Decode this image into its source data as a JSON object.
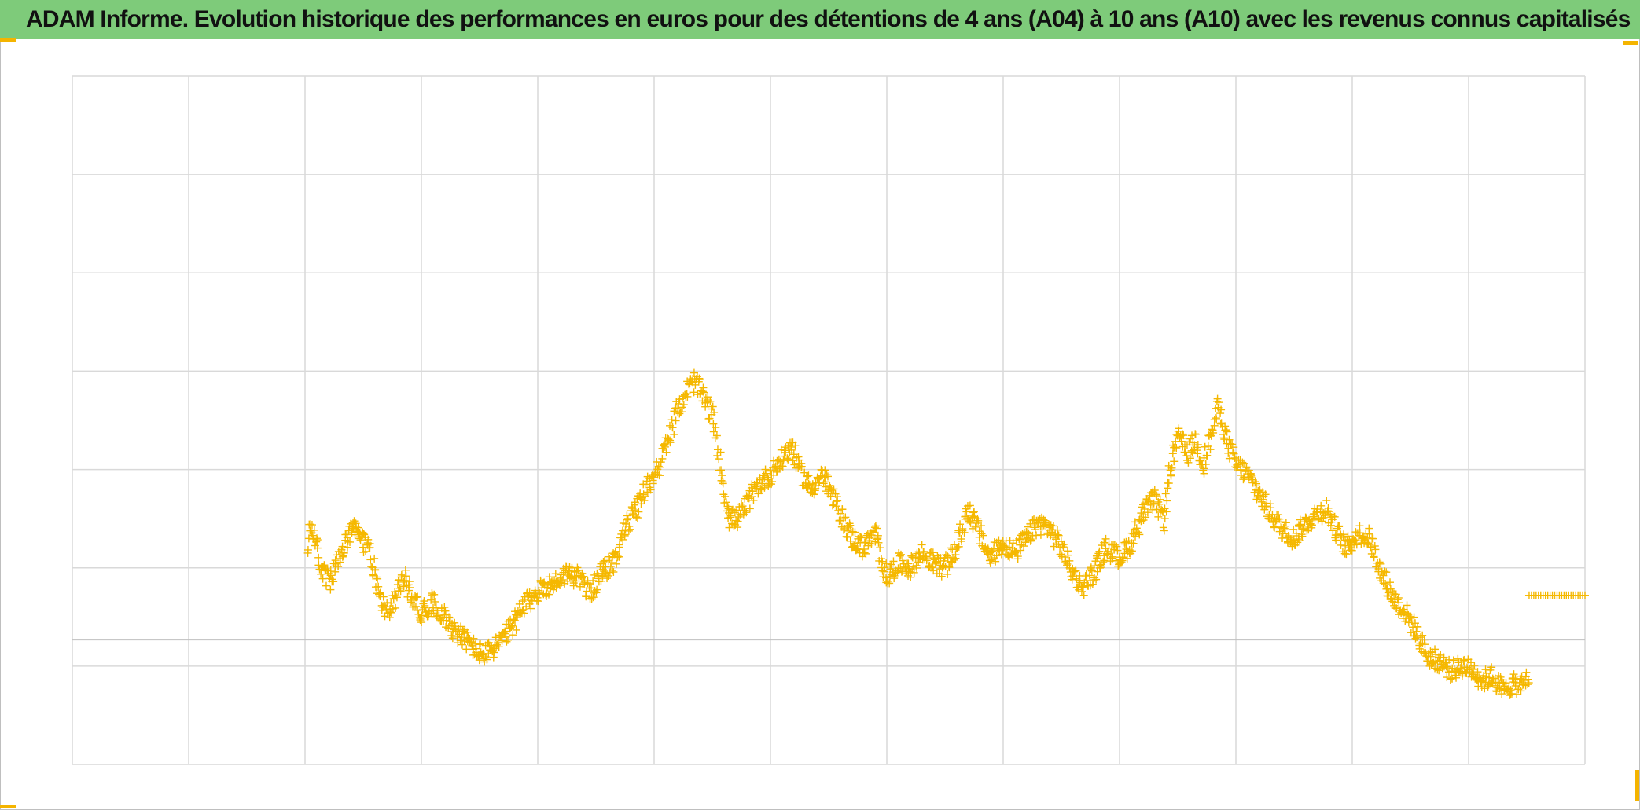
{
  "title": "ADAM Informe. Evolution historique des performances en euros pour des détentions de 4 ans (A04) à 10 ans (A10) avec les revenus connus capitalisés",
  "colors": {
    "title_bar": "#7ecb7a",
    "marker": "#f5b800",
    "grid": "#d9d9d9",
    "reference_line": "#bfbfbf",
    "handles": "#f4b400"
  },
  "chart_data": {
    "type": "scatter",
    "marker": "plus",
    "xlim": [
      0,
      13
    ],
    "ylim": [
      -1,
      6
    ],
    "x_gridlines": [
      0,
      1,
      2,
      3,
      4,
      5,
      6,
      7,
      8,
      9,
      10,
      11,
      12,
      13
    ],
    "y_gridlines": [
      -1,
      0,
      1,
      2,
      3,
      4,
      5,
      6
    ],
    "reference_line_y": 0.27,
    "tick_labels_visible": false,
    "series": [
      {
        "values_anchor_points": [
          [
            2.02,
            1.15
          ],
          [
            2.05,
            1.45
          ],
          [
            2.08,
            1.35
          ],
          [
            2.12,
            1.05
          ],
          [
            2.16,
            0.95
          ],
          [
            2.22,
            0.85
          ],
          [
            2.28,
            1.05
          ],
          [
            2.35,
            1.25
          ],
          [
            2.42,
            1.4
          ],
          [
            2.48,
            1.3
          ],
          [
            2.55,
            1.2
          ],
          [
            2.62,
            0.85
          ],
          [
            2.68,
            0.6
          ],
          [
            2.74,
            0.55
          ],
          [
            2.78,
            0.7
          ],
          [
            2.85,
            0.9
          ],
          [
            2.92,
            0.7
          ],
          [
            3.0,
            0.55
          ],
          [
            3.1,
            0.65
          ],
          [
            3.2,
            0.5
          ],
          [
            3.3,
            0.35
          ],
          [
            3.4,
            0.25
          ],
          [
            3.48,
            0.15
          ],
          [
            3.55,
            0.12
          ],
          [
            3.65,
            0.22
          ],
          [
            3.75,
            0.35
          ],
          [
            3.85,
            0.55
          ],
          [
            3.95,
            0.7
          ],
          [
            4.05,
            0.8
          ],
          [
            4.15,
            0.85
          ],
          [
            4.25,
            0.95
          ],
          [
            4.35,
            0.9
          ],
          [
            4.45,
            0.75
          ],
          [
            4.55,
            0.95
          ],
          [
            4.65,
            1.05
          ],
          [
            4.75,
            1.4
          ],
          [
            4.85,
            1.6
          ],
          [
            4.95,
            1.85
          ],
          [
            5.05,
            2.05
          ],
          [
            5.12,
            2.3
          ],
          [
            5.2,
            2.6
          ],
          [
            5.28,
            2.8
          ],
          [
            5.35,
            2.9
          ],
          [
            5.42,
            2.75
          ],
          [
            5.5,
            2.55
          ],
          [
            5.55,
            2.2
          ],
          [
            5.6,
            1.8
          ],
          [
            5.65,
            1.5
          ],
          [
            5.72,
            1.5
          ],
          [
            5.8,
            1.65
          ],
          [
            5.9,
            1.85
          ],
          [
            6.0,
            1.95
          ],
          [
            6.1,
            2.1
          ],
          [
            6.18,
            2.25
          ],
          [
            6.25,
            2.0
          ],
          [
            6.35,
            1.8
          ],
          [
            6.45,
            1.95
          ],
          [
            6.52,
            1.75
          ],
          [
            6.6,
            1.55
          ],
          [
            6.7,
            1.3
          ],
          [
            6.8,
            1.2
          ],
          [
            6.9,
            1.35
          ],
          [
            7.0,
            0.9
          ],
          [
            7.1,
            1.05
          ],
          [
            7.2,
            1.0
          ],
          [
            7.3,
            1.15
          ],
          [
            7.4,
            1.05
          ],
          [
            7.5,
            1.0
          ],
          [
            7.6,
            1.2
          ],
          [
            7.7,
            1.6
          ],
          [
            7.78,
            1.4
          ],
          [
            7.88,
            1.1
          ],
          [
            8.0,
            1.25
          ],
          [
            8.1,
            1.15
          ],
          [
            8.2,
            1.3
          ],
          [
            8.3,
            1.45
          ],
          [
            8.4,
            1.4
          ],
          [
            8.5,
            1.2
          ],
          [
            8.6,
            0.95
          ],
          [
            8.68,
            0.8
          ],
          [
            8.78,
            0.95
          ],
          [
            8.88,
            1.2
          ],
          [
            9.0,
            1.1
          ],
          [
            9.1,
            1.25
          ],
          [
            9.2,
            1.55
          ],
          [
            9.3,
            1.7
          ],
          [
            9.38,
            1.5
          ],
          [
            9.45,
            2.1
          ],
          [
            9.52,
            2.35
          ],
          [
            9.58,
            2.15
          ],
          [
            9.65,
            2.3
          ],
          [
            9.72,
            2.05
          ],
          [
            9.8,
            2.4
          ],
          [
            9.85,
            2.65
          ],
          [
            9.92,
            2.3
          ],
          [
            10.0,
            2.05
          ],
          [
            10.1,
            1.95
          ],
          [
            10.2,
            1.75
          ],
          [
            10.3,
            1.55
          ],
          [
            10.4,
            1.4
          ],
          [
            10.5,
            1.3
          ],
          [
            10.6,
            1.45
          ],
          [
            10.7,
            1.55
          ],
          [
            10.78,
            1.6
          ],
          [
            10.85,
            1.4
          ],
          [
            10.95,
            1.2
          ],
          [
            11.05,
            1.35
          ],
          [
            11.15,
            1.3
          ],
          [
            11.25,
            0.95
          ],
          [
            11.35,
            0.7
          ],
          [
            11.45,
            0.55
          ],
          [
            11.55,
            0.35
          ],
          [
            11.65,
            0.1
          ],
          [
            11.75,
            0.05
          ],
          [
            11.85,
            -0.05
          ],
          [
            11.95,
            0.0
          ],
          [
            12.05,
            -0.05
          ],
          [
            12.12,
            -0.15
          ],
          [
            12.2,
            -0.1
          ],
          [
            12.3,
            -0.25
          ],
          [
            12.38,
            -0.18
          ],
          [
            12.45,
            -0.2
          ],
          [
            12.52,
            -0.1
          ]
        ]
      },
      {
        "values_segment": {
          "x_start": 12.52,
          "x_end": 13.0,
          "y": 0.72
        }
      }
    ]
  }
}
